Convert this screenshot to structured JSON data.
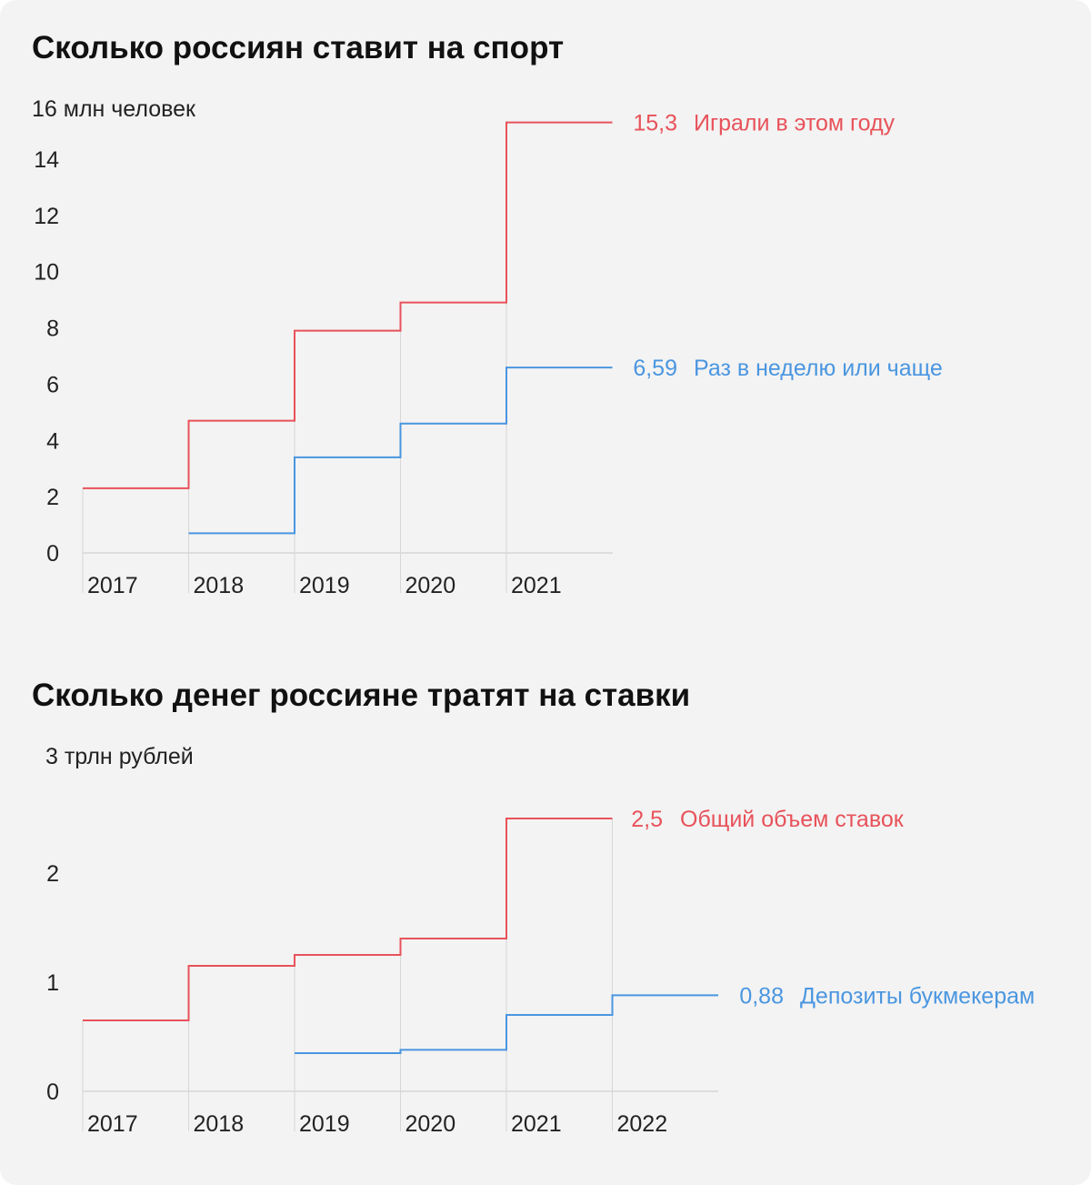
{
  "colors": {
    "red": "#e8525a",
    "blue": "#4a96e0",
    "grid": "#d6d6d6",
    "text": "#222222",
    "background": "#f3f3f3"
  },
  "chart_data": [
    {
      "type": "line",
      "step": true,
      "title": "Сколько россиян ставит на спорт",
      "ylabel": "16 млн человек",
      "x": [
        "2017",
        "2018",
        "2019",
        "2020",
        "2021"
      ],
      "y_ticks": [
        "0",
        "2",
        "4",
        "6",
        "8",
        "10",
        "12",
        "14"
      ],
      "ylim": [
        0,
        16
      ],
      "grid": "vertical",
      "series": [
        {
          "name": "Играли в этом году",
          "color": "#e8525a",
          "values": [
            2.3,
            4.7,
            7.9,
            8.9,
            15.3
          ],
          "end_label": "15,3"
        },
        {
          "name": "Раз в неделю или чаще",
          "color": "#4a96e0",
          "values": [
            null,
            0.7,
            3.4,
            4.6,
            6.59
          ],
          "end_label": "6,59"
        }
      ]
    },
    {
      "type": "line",
      "step": true,
      "title": "Сколько денег россияне тратят на ставки",
      "ylabel": "3 трлн рублей",
      "x": [
        "2017",
        "2018",
        "2019",
        "2020",
        "2021",
        "2022"
      ],
      "y_ticks": [
        "0",
        "1",
        "2"
      ],
      "ylim": [
        0,
        3
      ],
      "grid": "vertical",
      "series": [
        {
          "name": "Общий объем ставок",
          "color": "#e8525a",
          "values": [
            0.65,
            1.15,
            1.25,
            1.4,
            2.5,
            null
          ],
          "end_label": "2,5"
        },
        {
          "name": "Депозиты букмекерам",
          "color": "#4a96e0",
          "values": [
            null,
            null,
            0.35,
            0.38,
            0.7,
            0.88
          ],
          "end_label": "0,88"
        }
      ]
    }
  ]
}
